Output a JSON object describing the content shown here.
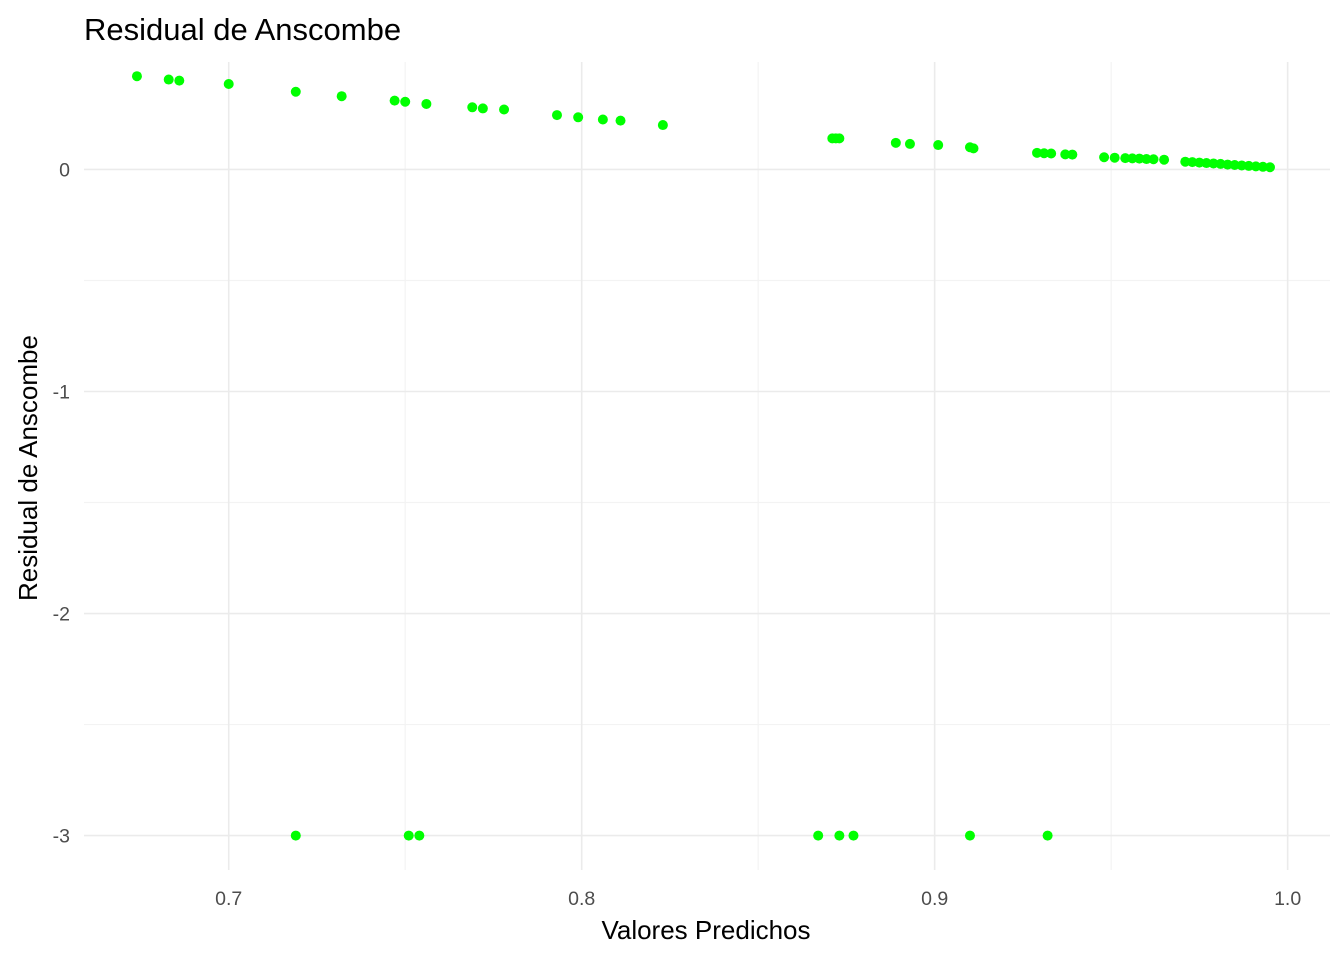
{
  "chart_data": {
    "type": "scatter",
    "title": "Residual de Anscombe",
    "xlabel": "Valores Predichos",
    "ylabel": "Residual de Anscombe",
    "xlim": [
      0.659,
      1.012
    ],
    "ylim": [
      -3.155,
      0.484
    ],
    "x_ticks": [
      0.7,
      0.8,
      0.9,
      1.0
    ],
    "x_tick_labels": [
      "0.7",
      "0.8",
      "0.9",
      "1.0"
    ],
    "y_ticks": [
      -3,
      -2,
      -1,
      0
    ],
    "y_tick_labels": [
      "-3",
      "-2",
      "-1",
      "0"
    ],
    "grid": true,
    "point_color": "#00ff00",
    "points": [
      {
        "x": 0.674,
        "y": 0.42
      },
      {
        "x": 0.683,
        "y": 0.405
      },
      {
        "x": 0.686,
        "y": 0.4
      },
      {
        "x": 0.7,
        "y": 0.385
      },
      {
        "x": 0.719,
        "y": 0.35
      },
      {
        "x": 0.732,
        "y": 0.33
      },
      {
        "x": 0.747,
        "y": 0.31
      },
      {
        "x": 0.75,
        "y": 0.305
      },
      {
        "x": 0.756,
        "y": 0.295
      },
      {
        "x": 0.769,
        "y": 0.28
      },
      {
        "x": 0.772,
        "y": 0.275
      },
      {
        "x": 0.778,
        "y": 0.27
      },
      {
        "x": 0.793,
        "y": 0.245
      },
      {
        "x": 0.799,
        "y": 0.235
      },
      {
        "x": 0.806,
        "y": 0.225
      },
      {
        "x": 0.811,
        "y": 0.22
      },
      {
        "x": 0.823,
        "y": 0.2
      },
      {
        "x": 0.871,
        "y": 0.14
      },
      {
        "x": 0.872,
        "y": 0.14
      },
      {
        "x": 0.873,
        "y": 0.14
      },
      {
        "x": 0.889,
        "y": 0.12
      },
      {
        "x": 0.893,
        "y": 0.115
      },
      {
        "x": 0.901,
        "y": 0.11
      },
      {
        "x": 0.91,
        "y": 0.1
      },
      {
        "x": 0.911,
        "y": 0.095
      },
      {
        "x": 0.929,
        "y": 0.075
      },
      {
        "x": 0.931,
        "y": 0.073
      },
      {
        "x": 0.933,
        "y": 0.072
      },
      {
        "x": 0.937,
        "y": 0.068
      },
      {
        "x": 0.939,
        "y": 0.067
      },
      {
        "x": 0.948,
        "y": 0.055
      },
      {
        "x": 0.951,
        "y": 0.053
      },
      {
        "x": 0.954,
        "y": 0.051
      },
      {
        "x": 0.956,
        "y": 0.05
      },
      {
        "x": 0.958,
        "y": 0.049
      },
      {
        "x": 0.96,
        "y": 0.047
      },
      {
        "x": 0.962,
        "y": 0.046
      },
      {
        "x": 0.965,
        "y": 0.044
      },
      {
        "x": 0.971,
        "y": 0.035
      },
      {
        "x": 0.973,
        "y": 0.033
      },
      {
        "x": 0.975,
        "y": 0.031
      },
      {
        "x": 0.977,
        "y": 0.029
      },
      {
        "x": 0.979,
        "y": 0.027
      },
      {
        "x": 0.981,
        "y": 0.025
      },
      {
        "x": 0.983,
        "y": 0.022
      },
      {
        "x": 0.985,
        "y": 0.02
      },
      {
        "x": 0.987,
        "y": 0.018
      },
      {
        "x": 0.989,
        "y": 0.016
      },
      {
        "x": 0.991,
        "y": 0.014
      },
      {
        "x": 0.993,
        "y": 0.012
      },
      {
        "x": 0.995,
        "y": 0.01
      },
      {
        "x": 0.719,
        "y": -3.0
      },
      {
        "x": 0.751,
        "y": -3.0
      },
      {
        "x": 0.754,
        "y": -3.0
      },
      {
        "x": 0.867,
        "y": -3.0
      },
      {
        "x": 0.873,
        "y": -3.0
      },
      {
        "x": 0.877,
        "y": -3.0
      },
      {
        "x": 0.91,
        "y": -3.0
      },
      {
        "x": 0.932,
        "y": -3.0
      }
    ]
  }
}
